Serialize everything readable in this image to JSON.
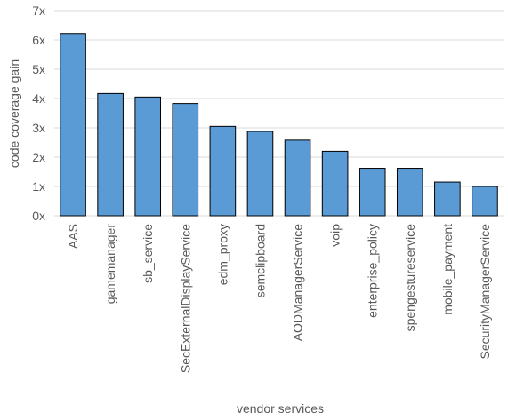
{
  "chart_data": {
    "type": "bar",
    "categories": [
      "AAS",
      "gamemanager",
      "sb_service",
      "SecExternalDisplayService",
      "edm_proxy",
      "semclipboard",
      "AODManagerService",
      "voip",
      "enterprise_policy",
      "spengestureservice",
      "mobile_payment",
      "SecurityManagerService"
    ],
    "values": [
      6.22,
      4.17,
      4.05,
      3.83,
      3.05,
      2.88,
      2.58,
      2.2,
      1.62,
      1.62,
      1.15,
      1.0
    ],
    "ylabel": "code coverage gain",
    "xlabel": "vendor services",
    "ylim": [
      0,
      7
    ],
    "yticks": [
      "0x",
      "1x",
      "2x",
      "3x",
      "4x",
      "5x",
      "6x",
      "7x"
    ],
    "grid": true,
    "colors": {
      "bar": "#5b9bd5",
      "bar_edge": "#000000",
      "grid": "#d9d9d9",
      "text": "#595959"
    }
  }
}
